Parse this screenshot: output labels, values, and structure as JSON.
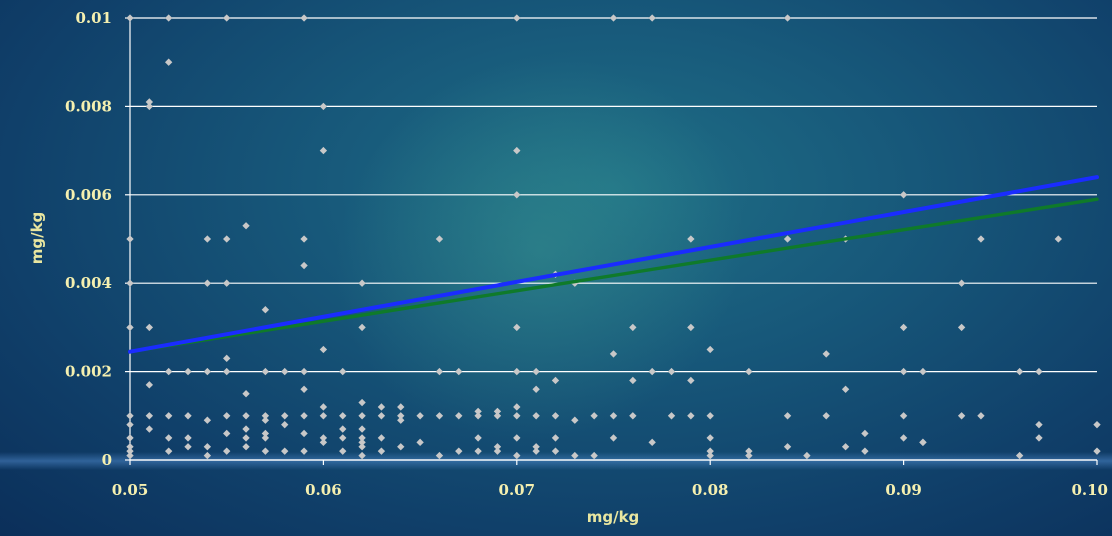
{
  "colors": {
    "grid": "#ffffff",
    "point": "#c8c8c8",
    "trend_blue": "#1a2cff",
    "trend_green": "#0f7a2a",
    "tick_text": "#f5f0b0",
    "axis_title": "#e8e6a0"
  },
  "chart_data": {
    "type": "scatter",
    "title": "",
    "xlabel": "mg/kg",
    "ylabel": "mg/kg",
    "xlim": [
      0.05,
      0.1
    ],
    "ylim": [
      0,
      0.01
    ],
    "grid": true,
    "x_ticks": [
      "0.05",
      "0.06",
      "0.07",
      "0.08",
      "0.09",
      "0.10"
    ],
    "y_ticks": [
      "0",
      "0.002",
      "0.004",
      "0.006",
      "0.008",
      "0.01"
    ],
    "trendlines": [
      {
        "color": "green",
        "x": [
          0.05,
          0.1
        ],
        "y": [
          0.00245,
          0.0059
        ]
      },
      {
        "color": "blue",
        "x": [
          0.05,
          0.1
        ],
        "y": [
          0.00245,
          0.0064
        ]
      }
    ],
    "points": [
      [
        0.05,
        0.01
      ],
      [
        0.052,
        0.01
      ],
      [
        0.055,
        0.01
      ],
      [
        0.059,
        0.01
      ],
      [
        0.07,
        0.01
      ],
      [
        0.075,
        0.01
      ],
      [
        0.077,
        0.01
      ],
      [
        0.084,
        0.01
      ],
      [
        0.052,
        0.009
      ],
      [
        0.051,
        0.0081
      ],
      [
        0.051,
        0.008
      ],
      [
        0.06,
        0.008
      ],
      [
        0.06,
        0.007
      ],
      [
        0.07,
        0.007
      ],
      [
        0.07,
        0.006
      ],
      [
        0.09,
        0.006
      ],
      [
        0.056,
        0.0053
      ],
      [
        0.05,
        0.005
      ],
      [
        0.054,
        0.005
      ],
      [
        0.055,
        0.005
      ],
      [
        0.059,
        0.005
      ],
      [
        0.066,
        0.005
      ],
      [
        0.079,
        0.005
      ],
      [
        0.084,
        0.005
      ],
      [
        0.087,
        0.005
      ],
      [
        0.094,
        0.005
      ],
      [
        0.098,
        0.005
      ],
      [
        0.059,
        0.0044
      ],
      [
        0.05,
        0.004
      ],
      [
        0.054,
        0.004
      ],
      [
        0.055,
        0.004
      ],
      [
        0.062,
        0.004
      ],
      [
        0.073,
        0.004
      ],
      [
        0.093,
        0.004
      ],
      [
        0.072,
        0.0042
      ],
      [
        0.057,
        0.0034
      ],
      [
        0.05,
        0.003
      ],
      [
        0.051,
        0.003
      ],
      [
        0.062,
        0.003
      ],
      [
        0.07,
        0.003
      ],
      [
        0.076,
        0.003
      ],
      [
        0.079,
        0.003
      ],
      [
        0.09,
        0.003
      ],
      [
        0.093,
        0.003
      ],
      [
        0.06,
        0.0025
      ],
      [
        0.075,
        0.0024
      ],
      [
        0.08,
        0.0025
      ],
      [
        0.086,
        0.0024
      ],
      [
        0.055,
        0.0023
      ],
      [
        0.052,
        0.002
      ],
      [
        0.053,
        0.002
      ],
      [
        0.054,
        0.002
      ],
      [
        0.055,
        0.002
      ],
      [
        0.057,
        0.002
      ],
      [
        0.058,
        0.002
      ],
      [
        0.059,
        0.002
      ],
      [
        0.061,
        0.002
      ],
      [
        0.066,
        0.002
      ],
      [
        0.067,
        0.002
      ],
      [
        0.07,
        0.002
      ],
      [
        0.071,
        0.002
      ],
      [
        0.077,
        0.002
      ],
      [
        0.078,
        0.002
      ],
      [
        0.082,
        0.002
      ],
      [
        0.09,
        0.002
      ],
      [
        0.091,
        0.002
      ],
      [
        0.096,
        0.002
      ],
      [
        0.097,
        0.002
      ],
      [
        0.072,
        0.0018
      ],
      [
        0.076,
        0.0018
      ],
      [
        0.079,
        0.0018
      ],
      [
        0.051,
        0.0017
      ],
      [
        0.059,
        0.0016
      ],
      [
        0.071,
        0.0016
      ],
      [
        0.087,
        0.0016
      ],
      [
        0.056,
        0.0015
      ],
      [
        0.06,
        0.0012
      ],
      [
        0.062,
        0.0013
      ],
      [
        0.063,
        0.0012
      ],
      [
        0.064,
        0.0012
      ],
      [
        0.07,
        0.0012
      ],
      [
        0.068,
        0.0011
      ],
      [
        0.069,
        0.0011
      ],
      [
        0.05,
        0.001
      ],
      [
        0.051,
        0.001
      ],
      [
        0.052,
        0.001
      ],
      [
        0.053,
        0.001
      ],
      [
        0.055,
        0.001
      ],
      [
        0.056,
        0.001
      ],
      [
        0.057,
        0.001
      ],
      [
        0.058,
        0.001
      ],
      [
        0.059,
        0.001
      ],
      [
        0.06,
        0.001
      ],
      [
        0.061,
        0.001
      ],
      [
        0.062,
        0.001
      ],
      [
        0.063,
        0.001
      ],
      [
        0.064,
        0.001
      ],
      [
        0.065,
        0.001
      ],
      [
        0.066,
        0.001
      ],
      [
        0.067,
        0.001
      ],
      [
        0.068,
        0.001
      ],
      [
        0.069,
        0.001
      ],
      [
        0.07,
        0.001
      ],
      [
        0.071,
        0.001
      ],
      [
        0.072,
        0.001
      ],
      [
        0.074,
        0.001
      ],
      [
        0.075,
        0.001
      ],
      [
        0.076,
        0.001
      ],
      [
        0.078,
        0.001
      ],
      [
        0.079,
        0.001
      ],
      [
        0.08,
        0.001
      ],
      [
        0.084,
        0.001
      ],
      [
        0.086,
        0.001
      ],
      [
        0.09,
        0.001
      ],
      [
        0.093,
        0.001
      ],
      [
        0.094,
        0.001
      ],
      [
        0.05,
        0.0008
      ],
      [
        0.054,
        0.0009
      ],
      [
        0.057,
        0.0009
      ],
      [
        0.058,
        0.0008
      ],
      [
        0.064,
        0.0009
      ],
      [
        0.073,
        0.0009
      ],
      [
        0.088,
        0.0006
      ],
      [
        0.097,
        0.0008
      ],
      [
        0.1,
        0.0008
      ],
      [
        0.051,
        0.0007
      ],
      [
        0.056,
        0.0007
      ],
      [
        0.057,
        0.0006
      ],
      [
        0.061,
        0.0007
      ],
      [
        0.062,
        0.0007
      ],
      [
        0.055,
        0.0006
      ],
      [
        0.059,
        0.0006
      ],
      [
        0.065,
        0.0004
      ],
      [
        0.05,
        0.0005
      ],
      [
        0.052,
        0.0005
      ],
      [
        0.053,
        0.0005
      ],
      [
        0.056,
        0.0005
      ],
      [
        0.057,
        0.0005
      ],
      [
        0.06,
        0.0005
      ],
      [
        0.061,
        0.0005
      ],
      [
        0.062,
        0.0005
      ],
      [
        0.063,
        0.0005
      ],
      [
        0.068,
        0.0005
      ],
      [
        0.07,
        0.0005
      ],
      [
        0.072,
        0.0005
      ],
      [
        0.075,
        0.0005
      ],
      [
        0.08,
        0.0005
      ],
      [
        0.09,
        0.0005
      ],
      [
        0.097,
        0.0005
      ],
      [
        0.062,
        0.0004
      ],
      [
        0.06,
        0.0004
      ],
      [
        0.091,
        0.0004
      ],
      [
        0.077,
        0.0004
      ],
      [
        0.05,
        0.0003
      ],
      [
        0.053,
        0.0003
      ],
      [
        0.054,
        0.0003
      ],
      [
        0.056,
        0.0003
      ],
      [
        0.058,
        0.0002
      ],
      [
        0.062,
        0.0003
      ],
      [
        0.064,
        0.0003
      ],
      [
        0.068,
        0.0002
      ],
      [
        0.069,
        0.0003
      ],
      [
        0.071,
        0.0003
      ],
      [
        0.084,
        0.0003
      ],
      [
        0.087,
        0.0003
      ],
      [
        0.091,
        0.0004
      ],
      [
        0.05,
        0.0002
      ],
      [
        0.052,
        0.0002
      ],
      [
        0.055,
        0.0002
      ],
      [
        0.057,
        0.0002
      ],
      [
        0.059,
        0.0002
      ],
      [
        0.061,
        0.0002
      ],
      [
        0.063,
        0.0002
      ],
      [
        0.067,
        0.0002
      ],
      [
        0.069,
        0.0002
      ],
      [
        0.071,
        0.0002
      ],
      [
        0.072,
        0.0002
      ],
      [
        0.08,
        0.0002
      ],
      [
        0.082,
        0.0002
      ],
      [
        0.088,
        0.0002
      ],
      [
        0.1,
        0.0002
      ],
      [
        0.05,
        0.0001
      ],
      [
        0.054,
        0.0001
      ],
      [
        0.062,
        0.0001
      ],
      [
        0.066,
        0.0001
      ],
      [
        0.07,
        0.0001
      ],
      [
        0.073,
        0.0001
      ],
      [
        0.074,
        0.0001
      ],
      [
        0.08,
        0.0001
      ],
      [
        0.082,
        0.0001
      ],
      [
        0.085,
        0.0001
      ],
      [
        0.096,
        0.0001
      ]
    ]
  }
}
